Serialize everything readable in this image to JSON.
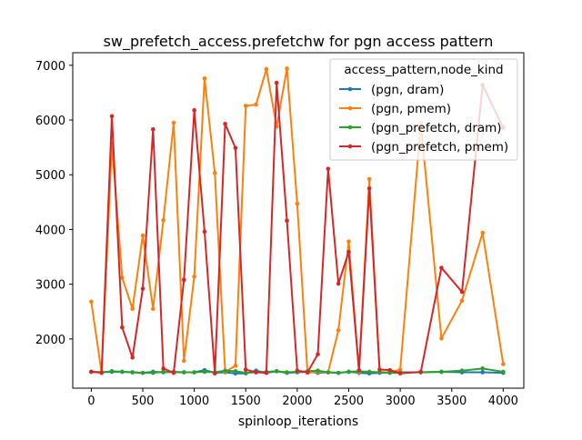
{
  "chart_data": {
    "type": "line",
    "title": "sw_prefetch_access.prefetchw for pgn access pattern",
    "xlabel": "spinloop_iterations",
    "ylabel": "",
    "xlim": [
      -180,
      4200
    ],
    "ylim": [
      1100,
      7230
    ],
    "xticks": [
      0,
      500,
      1000,
      1500,
      2000,
      2500,
      3000,
      3500,
      4000
    ],
    "yticks": [
      2000,
      3000,
      4000,
      5000,
      6000,
      7000
    ],
    "grid": false,
    "legend": {
      "title": "access_pattern,node_kind",
      "position": "top-right"
    },
    "series": [
      {
        "name": "(pgn, dram)",
        "color": "#1f77b4",
        "points": [
          [
            0,
            1400
          ],
          [
            100,
            1390
          ],
          [
            200,
            1400
          ],
          [
            300,
            1400
          ],
          [
            400,
            1390
          ],
          [
            500,
            1380
          ],
          [
            600,
            1400
          ],
          [
            700,
            1390
          ],
          [
            800,
            1400
          ],
          [
            900,
            1390
          ],
          [
            1000,
            1390
          ],
          [
            1100,
            1430
          ],
          [
            1200,
            1380
          ],
          [
            1300,
            1390
          ],
          [
            1400,
            1370
          ],
          [
            1500,
            1370
          ],
          [
            1600,
            1420
          ],
          [
            1700,
            1380
          ],
          [
            1800,
            1410
          ],
          [
            1900,
            1380
          ],
          [
            2000,
            1390
          ],
          [
            2100,
            1400
          ],
          [
            2200,
            1380
          ],
          [
            2300,
            1390
          ],
          [
            2400,
            1380
          ],
          [
            2500,
            1400
          ],
          [
            2600,
            1380
          ],
          [
            2700,
            1370
          ],
          [
            2800,
            1380
          ],
          [
            2900,
            1390
          ],
          [
            3000,
            1390
          ],
          [
            3200,
            1390
          ],
          [
            3400,
            1400
          ],
          [
            3600,
            1390
          ],
          [
            3800,
            1390
          ],
          [
            4000,
            1380
          ]
        ]
      },
      {
        "name": "(pgn, pmem)",
        "color": "#ff7f0e",
        "points": [
          [
            0,
            2680
          ],
          [
            100,
            1380
          ],
          [
            200,
            5570
          ],
          [
            300,
            3120
          ],
          [
            400,
            2550
          ],
          [
            500,
            3890
          ],
          [
            600,
            2550
          ],
          [
            700,
            4170
          ],
          [
            800,
            5950
          ],
          [
            900,
            1600
          ],
          [
            1000,
            3140
          ],
          [
            1100,
            6760
          ],
          [
            1200,
            5030
          ],
          [
            1300,
            1400
          ],
          [
            1400,
            1510
          ],
          [
            1500,
            6260
          ],
          [
            1600,
            6280
          ],
          [
            1700,
            6930
          ],
          [
            1800,
            5880
          ],
          [
            1900,
            6940
          ],
          [
            2000,
            4470
          ],
          [
            2100,
            1380
          ],
          [
            2200,
            1400
          ],
          [
            2300,
            1390
          ],
          [
            2400,
            2160
          ],
          [
            2500,
            3780
          ],
          [
            2600,
            1390
          ],
          [
            2700,
            4920
          ],
          [
            2800,
            1390
          ],
          [
            2900,
            1390
          ],
          [
            3000,
            1440
          ],
          [
            3200,
            5940
          ],
          [
            3400,
            2010
          ],
          [
            3600,
            2700
          ],
          [
            3800,
            3940
          ],
          [
            4000,
            1540
          ]
        ]
      },
      {
        "name": "(pgn_prefetch, dram)",
        "color": "#2ca02c",
        "points": [
          [
            0,
            1400
          ],
          [
            100,
            1390
          ],
          [
            200,
            1410
          ],
          [
            300,
            1400
          ],
          [
            400,
            1390
          ],
          [
            500,
            1380
          ],
          [
            600,
            1380
          ],
          [
            700,
            1400
          ],
          [
            800,
            1390
          ],
          [
            900,
            1390
          ],
          [
            1000,
            1390
          ],
          [
            1100,
            1400
          ],
          [
            1200,
            1390
          ],
          [
            1300,
            1420
          ],
          [
            1400,
            1410
          ],
          [
            1500,
            1380
          ],
          [
            1600,
            1390
          ],
          [
            1700,
            1400
          ],
          [
            1800,
            1410
          ],
          [
            1900,
            1390
          ],
          [
            2000,
            1400
          ],
          [
            2100,
            1410
          ],
          [
            2200,
            1420
          ],
          [
            2300,
            1390
          ],
          [
            2400,
            1380
          ],
          [
            2500,
            1400
          ],
          [
            2600,
            1410
          ],
          [
            2700,
            1400
          ],
          [
            2800,
            1390
          ],
          [
            2900,
            1380
          ],
          [
            3000,
            1380
          ],
          [
            3200,
            1390
          ],
          [
            3400,
            1400
          ],
          [
            3600,
            1420
          ],
          [
            3800,
            1460
          ],
          [
            4000,
            1400
          ]
        ]
      },
      {
        "name": "(pgn_prefetch, pmem)",
        "color": "#d62728",
        "points": [
          [
            0,
            1400
          ],
          [
            100,
            1380
          ],
          [
            200,
            6070
          ],
          [
            300,
            2210
          ],
          [
            400,
            1660
          ],
          [
            500,
            2920
          ],
          [
            600,
            5830
          ],
          [
            700,
            1460
          ],
          [
            800,
            1380
          ],
          [
            900,
            3080
          ],
          [
            1000,
            6180
          ],
          [
            1100,
            3960
          ],
          [
            1200,
            1370
          ],
          [
            1300,
            5930
          ],
          [
            1400,
            5490
          ],
          [
            1500,
            1440
          ],
          [
            1600,
            1390
          ],
          [
            1700,
            1380
          ],
          [
            1800,
            6680
          ],
          [
            1900,
            4160
          ],
          [
            2000,
            1420
          ],
          [
            2100,
            1390
          ],
          [
            2200,
            1720
          ],
          [
            2300,
            5110
          ],
          [
            2400,
            3010
          ],
          [
            2500,
            3590
          ],
          [
            2600,
            1430
          ],
          [
            2700,
            4750
          ],
          [
            2800,
            1440
          ],
          [
            2900,
            1430
          ],
          [
            3000,
            1370
          ],
          [
            3200,
            1400
          ],
          [
            3400,
            3300
          ],
          [
            3600,
            2860
          ],
          [
            3800,
            6640
          ],
          [
            4000,
            5860
          ]
        ]
      }
    ]
  }
}
